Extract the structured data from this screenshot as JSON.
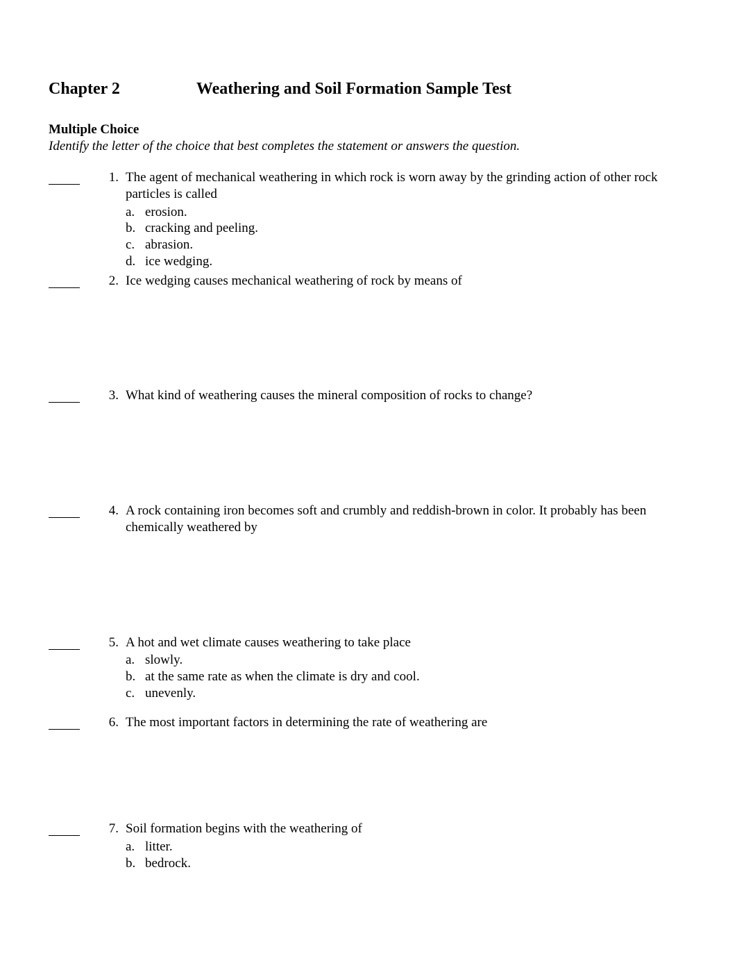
{
  "heading": {
    "chapter_label": "Chapter 2",
    "title": "Weathering and Soil Formation Sample Test"
  },
  "section": {
    "title": "Multiple Choice",
    "instruction": "Identify the letter of the choice that best completes the statement or answers the question."
  },
  "questions": [
    {
      "number": "1.",
      "stem": "The agent of mechanical weathering in which rock is worn away by the grinding action of other rock particles is called",
      "choices": [
        {
          "letter": "a.",
          "text": "erosion."
        },
        {
          "letter": "b.",
          "text": "cracking and peeling."
        },
        {
          "letter": "c.",
          "text": "abrasion."
        },
        {
          "letter": "d.",
          "text": "ice wedging."
        }
      ],
      "spacer_after": "xs"
    },
    {
      "number": "2.",
      "stem": "Ice wedging causes mechanical weathering of rock by means of",
      "choices": [],
      "spacer_after": "lg"
    },
    {
      "number": "3.",
      "stem": "What kind of weathering causes the mineral composition of rocks to change?",
      "choices": [],
      "spacer_after": "lg"
    },
    {
      "number": "4.",
      "stem": "A rock containing iron becomes soft and crumbly and reddish-brown in color. It probably has been chemically weathered by",
      "choices": [],
      "spacer_after": "lg"
    },
    {
      "number": "5.",
      "stem": "A hot and wet climate causes weathering to take place",
      "choices": [
        {
          "letter": "a.",
          "text": "slowly."
        },
        {
          "letter": "b.",
          "text": "at the same rate as when the climate is dry and cool."
        },
        {
          "letter": "c.",
          "text": "unevenly."
        }
      ],
      "spacer_after": "sm"
    },
    {
      "number": "6.",
      "stem": "The most important factors in determining the rate of weathering are",
      "choices": [],
      "spacer_after": "q7"
    },
    {
      "number": "7.",
      "stem": "Soil formation begins with the weathering of",
      "choices": [
        {
          "letter": "a.",
          "text": "litter."
        },
        {
          "letter": "b.",
          "text": "bedrock."
        }
      ],
      "spacer_after": "none"
    }
  ]
}
